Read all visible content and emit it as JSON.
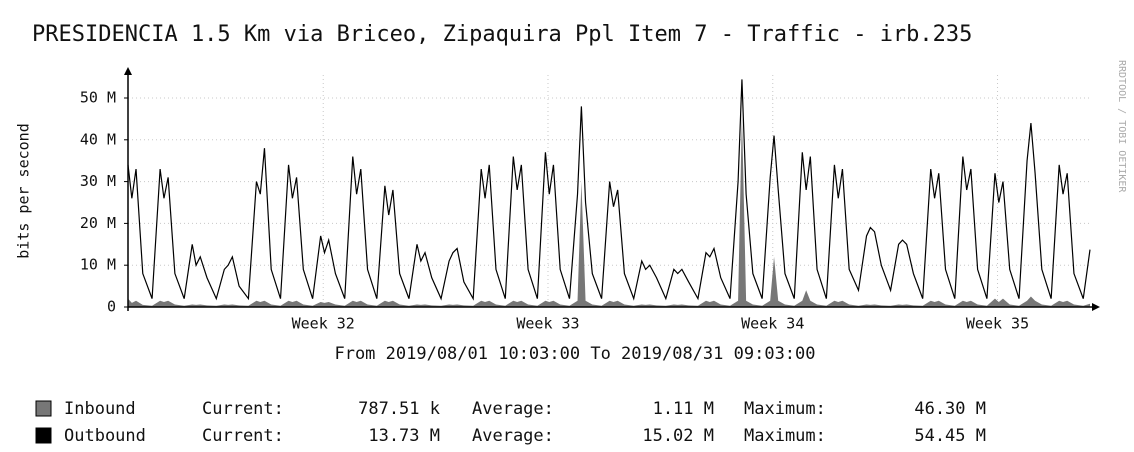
{
  "chart_data": {
    "type": "line",
    "title": "PRESIDENCIA 1.5 Km via Briceo, Zipaquira Ppl Item 7 - Traffic - irb.235",
    "watermark": "RRDTOOL / TOBI OETIKER",
    "y_label": "bits per second",
    "subtitle": "From 2019/08/01 10:03:00 To 2019/08/31 09:03:00",
    "xlim": [
      1.42,
      31.38
    ],
    "xticks": [
      {
        "value": 7.5,
        "label": "Week 32"
      },
      {
        "value": 14.5,
        "label": "Week 33"
      },
      {
        "value": 21.5,
        "label": "Week 34"
      },
      {
        "value": 28.5,
        "label": "Week 35"
      }
    ],
    "ylim": [
      0,
      55.5
    ],
    "yticks": [
      0,
      {
        "value": 10,
        "label": "10 M"
      },
      {
        "value": 20,
        "label": "20 M"
      },
      {
        "value": 30,
        "label": "30 M"
      },
      {
        "value": 40,
        "label": "40 M"
      },
      {
        "value": 50,
        "label": "50 M"
      }
    ],
    "grid": true,
    "stat_labels": [
      "Current:",
      "Average:",
      "Maximum:"
    ],
    "x": [
      1.42,
      1.54,
      1.67,
      1.88,
      2.17,
      2.42,
      2.54,
      2.67,
      2.88,
      3.17,
      3.42,
      3.54,
      3.67,
      3.88,
      4.17,
      4.42,
      4.54,
      4.67,
      4.88,
      5.17,
      5.42,
      5.54,
      5.67,
      5.88,
      6.17,
      6.42,
      6.54,
      6.67,
      6.88,
      7.17,
      7.42,
      7.54,
      7.67,
      7.88,
      8.17,
      8.42,
      8.54,
      8.67,
      8.88,
      9.17,
      9.42,
      9.54,
      9.67,
      9.88,
      10.17,
      10.42,
      10.54,
      10.67,
      10.88,
      11.17,
      11.42,
      11.54,
      11.67,
      11.88,
      12.17,
      12.42,
      12.54,
      12.67,
      12.88,
      13.17,
      13.42,
      13.54,
      13.67,
      13.88,
      14.17,
      14.42,
      14.54,
      14.67,
      14.88,
      15.17,
      15.42,
      15.54,
      15.67,
      15.88,
      16.17,
      16.42,
      16.54,
      16.67,
      16.88,
      17.17,
      17.42,
      17.54,
      17.67,
      17.88,
      18.17,
      18.42,
      18.54,
      18.67,
      18.88,
      19.17,
      19.42,
      19.54,
      19.67,
      19.88,
      20.17,
      20.42,
      20.54,
      20.67,
      20.88,
      21.17,
      21.42,
      21.54,
      21.67,
      21.88,
      22.17,
      22.42,
      22.54,
      22.67,
      22.88,
      23.17,
      23.42,
      23.54,
      23.67,
      23.88,
      24.17,
      24.42,
      24.54,
      24.67,
      24.88,
      25.17,
      25.42,
      25.54,
      25.67,
      25.88,
      26.17,
      26.42,
      26.54,
      26.67,
      26.88,
      27.17,
      27.42,
      27.54,
      27.67,
      27.88,
      28.17,
      28.42,
      28.54,
      28.67,
      28.88,
      29.17,
      29.42,
      29.54,
      29.67,
      29.88,
      30.17,
      30.42,
      30.54,
      30.67,
      30.88,
      31.17,
      31.38
    ],
    "series": [
      {
        "name": "Inbound",
        "color": "#777777",
        "fill": true,
        "stats": [
          "787.51 k",
          "1.11 M",
          "46.30 M"
        ],
        "values": [
          2,
          1,
          1.5,
          0.5,
          0.3,
          1.5,
          1.2,
          1.5,
          0.6,
          0.3,
          0.6,
          0.5,
          0.6,
          0.4,
          0.3,
          0.6,
          0.5,
          0.6,
          0.4,
          0.3,
          1.5,
          1.2,
          1.5,
          0.6,
          0.3,
          1.5,
          1.2,
          1.5,
          0.6,
          0.3,
          1.2,
          1,
          1.2,
          0.6,
          0.3,
          1.5,
          1.2,
          1.5,
          0.6,
          0.3,
          1.5,
          1.2,
          1.5,
          0.6,
          0.3,
          0.6,
          0.5,
          0.6,
          0.4,
          0.3,
          0.6,
          0.5,
          0.6,
          0.4,
          0.3,
          1.5,
          1.2,
          1.5,
          0.6,
          0.3,
          1.5,
          1.2,
          1.5,
          0.6,
          0.3,
          1.5,
          1.2,
          1.5,
          0.6,
          0.3,
          1.5,
          30,
          1.5,
          0.6,
          0.3,
          1.5,
          1.2,
          1.5,
          0.6,
          0.3,
          0.6,
          0.5,
          0.6,
          0.4,
          0.3,
          0.6,
          0.5,
          0.6,
          0.4,
          0.3,
          1.5,
          1.2,
          1.5,
          0.6,
          0.3,
          1.5,
          46.3,
          1.5,
          0.6,
          0.3,
          1.5,
          12,
          1.5,
          0.6,
          0.3,
          1.5,
          4,
          1.5,
          0.6,
          0.3,
          1.5,
          1.2,
          1.5,
          0.6,
          0.3,
          0.6,
          0.5,
          0.6,
          0.4,
          0.3,
          0.6,
          0.5,
          0.6,
          0.4,
          0.3,
          1.5,
          1.2,
          1.5,
          0.6,
          0.3,
          1.5,
          1.2,
          1.5,
          0.6,
          0.3,
          2,
          1.2,
          2,
          0.6,
          0.3,
          1.5,
          2.5,
          1.5,
          0.6,
          0.3,
          1.5,
          1.2,
          1.5,
          0.6,
          0.3,
          0.78751
        ]
      },
      {
        "name": "Outbound",
        "color": "#000000",
        "fill": false,
        "stats": [
          "13.73 M",
          "15.02 M",
          "54.45 M"
        ],
        "values": [
          34,
          26,
          33,
          8,
          2,
          33,
          26,
          31,
          8,
          2,
          15,
          10,
          12,
          7,
          2,
          9,
          10,
          12,
          5,
          2,
          30,
          27,
          38,
          9,
          2,
          34,
          26,
          31,
          9,
          2,
          17,
          13,
          16,
          8,
          2,
          36,
          27,
          33,
          9,
          2,
          29,
          22,
          28,
          8,
          2,
          15,
          11,
          13,
          7,
          2,
          11,
          13,
          14,
          6,
          2,
          33,
          26,
          34,
          9,
          2,
          36,
          28,
          34,
          9,
          2,
          37,
          27,
          34,
          9,
          2,
          27,
          48,
          25,
          8,
          2,
          30,
          24,
          28,
          8,
          2,
          11,
          9,
          10,
          7,
          2,
          9,
          8,
          9,
          6,
          2,
          13,
          12,
          14,
          7,
          2,
          30,
          54.45,
          27,
          8,
          2,
          31,
          41,
          28,
          8,
          2,
          37,
          28,
          36,
          9,
          2,
          34,
          26,
          33,
          9,
          4,
          17,
          19,
          18,
          10,
          4,
          15,
          16,
          15,
          8,
          2,
          33,
          26,
          32,
          9,
          2,
          36,
          28,
          33,
          9,
          2,
          32,
          25,
          30,
          9,
          2,
          35,
          44,
          32,
          9,
          2,
          34,
          27,
          32,
          8,
          2,
          13.73
        ]
      }
    ]
  }
}
